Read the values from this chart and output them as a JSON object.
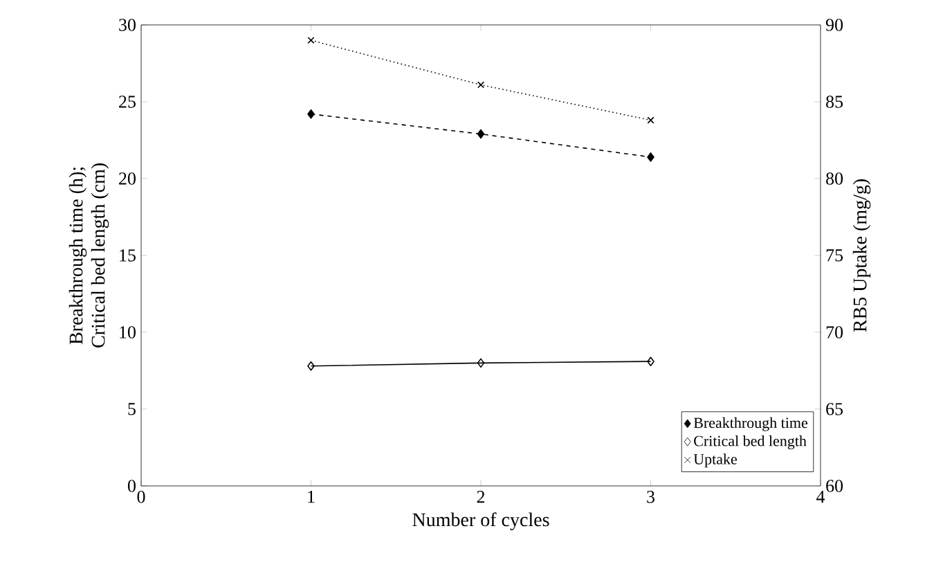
{
  "chart_data": {
    "type": "line",
    "xlabel": "Number of cycles",
    "ylabel": "Breakthrough time (h);\nCritical bed length (cm)",
    "y2label": "RB5 Uptake (mg/g)",
    "x": [
      1,
      2,
      3
    ],
    "series": [
      {
        "name": "Breakthrough time",
        "color": "#000000",
        "values": [
          24.2,
          22.9,
          21.4
        ],
        "marker": "diamond",
        "line_style": "dashed"
      },
      {
        "name": "Critical bed length",
        "color": "#000000",
        "values": [
          7.8,
          8.0,
          8.1
        ],
        "marker": "diamond",
        "line_style": "solid"
      },
      {
        "name": "Uptake",
        "color": "#000000",
        "values": [
          89.0,
          86.1,
          83.8
        ],
        "marker": "cross",
        "line_style": "dotted",
        "axis": "y2"
      }
    ],
    "xlim": [
      0,
      4
    ],
    "xticks": [
      0,
      1,
      2,
      3,
      4
    ],
    "ylim": [
      0,
      30
    ],
    "yticks": [
      0,
      5,
      10,
      15,
      20,
      25,
      30
    ],
    "y2lim": [
      60,
      90
    ],
    "y2ticks": [
      60,
      65,
      70,
      75,
      80,
      85,
      90
    ],
    "grid": false,
    "legend": "bottom right"
  }
}
